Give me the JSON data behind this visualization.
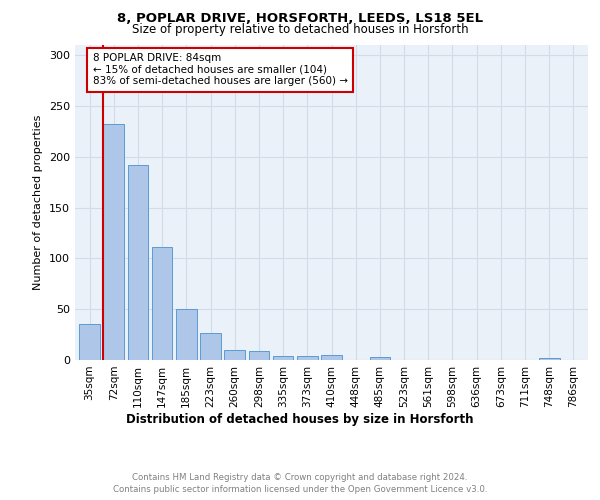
{
  "title1": "8, POPLAR DRIVE, HORSFORTH, LEEDS, LS18 5EL",
  "title2": "Size of property relative to detached houses in Horsforth",
  "xlabel": "Distribution of detached houses by size in Horsforth",
  "ylabel": "Number of detached properties",
  "categories": [
    "35sqm",
    "72sqm",
    "110sqm",
    "147sqm",
    "185sqm",
    "223sqm",
    "260sqm",
    "298sqm",
    "335sqm",
    "373sqm",
    "410sqm",
    "448sqm",
    "485sqm",
    "523sqm",
    "561sqm",
    "598sqm",
    "636sqm",
    "673sqm",
    "711sqm",
    "748sqm",
    "786sqm"
  ],
  "values": [
    35,
    232,
    192,
    111,
    50,
    27,
    10,
    9,
    4,
    4,
    5,
    0,
    3,
    0,
    0,
    0,
    0,
    0,
    0,
    2,
    0
  ],
  "bar_color": "#aec6e8",
  "bar_edge_color": "#5b9bd5",
  "vline_color": "#cc0000",
  "annotation_text": "8 POPLAR DRIVE: 84sqm\n← 15% of detached houses are smaller (104)\n83% of semi-detached houses are larger (560) →",
  "annotation_box_color": "#ffffff",
  "annotation_box_edge": "#cc0000",
  "grid_color": "#d0dce8",
  "background_color": "#eaf1f8",
  "footer_text": "Contains HM Land Registry data © Crown copyright and database right 2024.\nContains public sector information licensed under the Open Government Licence v3.0.",
  "ylim": [
    0,
    310
  ],
  "yticks": [
    0,
    50,
    100,
    150,
    200,
    250,
    300
  ]
}
